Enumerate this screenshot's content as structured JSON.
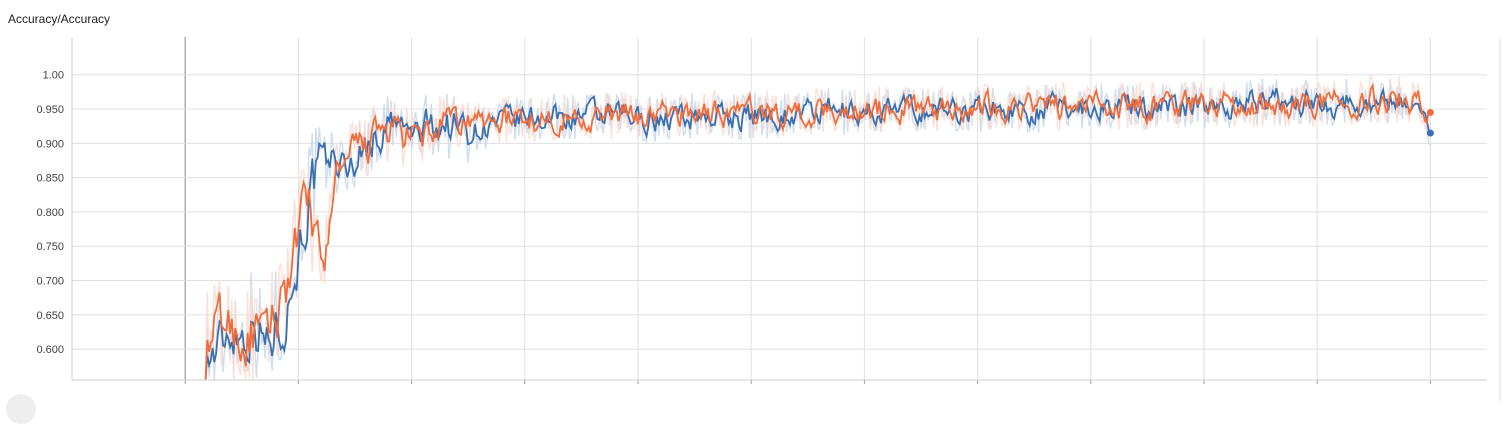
{
  "card": {
    "title": "Accuracy/Accuracy"
  },
  "chart_data": {
    "type": "line",
    "title": "Accuracy/Accuracy",
    "xlabel": "",
    "ylabel": "",
    "ylim": [
      0.555,
      1.055
    ],
    "xlim": [
      -1.0,
      11.5
    ],
    "x_gridlines": [
      0,
      1,
      2,
      3,
      4,
      5,
      6,
      7,
      8,
      9,
      10,
      11
    ],
    "y_ticks": [
      0.6,
      0.65,
      0.7,
      0.75,
      0.8,
      0.85,
      0.9,
      0.95,
      1.0
    ],
    "y_tick_labels": [
      "0.600",
      "0.650",
      "0.700",
      "0.750",
      "0.800",
      "0.850",
      "0.900",
      "0.950",
      "1.00"
    ],
    "grid": true,
    "smoothed": true,
    "series": [
      {
        "color": "#3a6fb0",
        "raw_color": "#c6d8ec",
        "points": [
          [
            0.18,
            0.59
          ],
          [
            0.3,
            0.6
          ],
          [
            0.4,
            0.64
          ],
          [
            0.5,
            0.62
          ],
          [
            0.6,
            0.65
          ],
          [
            0.7,
            0.6
          ],
          [
            0.8,
            0.64
          ],
          [
            0.9,
            0.67
          ],
          [
            1.0,
            0.76
          ],
          [
            1.05,
            0.8
          ],
          [
            1.1,
            0.84
          ],
          [
            1.2,
            0.86
          ],
          [
            1.3,
            0.88
          ],
          [
            1.4,
            0.86
          ],
          [
            1.5,
            0.88
          ],
          [
            1.6,
            0.9
          ],
          [
            1.7,
            0.91
          ],
          [
            1.8,
            0.93
          ],
          [
            1.9,
            0.92
          ],
          [
            2.0,
            0.91
          ],
          [
            2.2,
            0.93
          ],
          [
            2.5,
            0.92
          ],
          [
            2.8,
            0.93
          ],
          [
            3.0,
            0.935
          ],
          [
            3.5,
            0.94
          ],
          [
            4.0,
            0.935
          ],
          [
            4.5,
            0.94
          ],
          [
            5.0,
            0.94
          ],
          [
            5.5,
            0.945
          ],
          [
            6.0,
            0.945
          ],
          [
            6.5,
            0.95
          ],
          [
            7.0,
            0.95
          ],
          [
            7.5,
            0.95
          ],
          [
            8.0,
            0.955
          ],
          [
            8.5,
            0.955
          ],
          [
            9.0,
            0.955
          ],
          [
            9.5,
            0.96
          ],
          [
            10.0,
            0.96
          ],
          [
            10.5,
            0.96
          ],
          [
            10.8,
            0.965
          ],
          [
            11.0,
            0.915
          ]
        ]
      },
      {
        "color": "#f26b3a",
        "raw_color": "#fcd9ce",
        "points": [
          [
            0.18,
            0.6
          ],
          [
            0.3,
            0.64
          ],
          [
            0.4,
            0.63
          ],
          [
            0.5,
            0.61
          ],
          [
            0.6,
            0.62
          ],
          [
            0.7,
            0.6
          ],
          [
            0.8,
            0.66
          ],
          [
            0.9,
            0.71
          ],
          [
            1.0,
            0.77
          ],
          [
            1.1,
            0.82
          ],
          [
            1.2,
            0.68
          ],
          [
            1.3,
            0.86
          ],
          [
            1.4,
            0.86
          ],
          [
            1.5,
            0.89
          ],
          [
            1.6,
            0.9
          ],
          [
            1.7,
            0.91
          ],
          [
            1.8,
            0.92
          ],
          [
            1.9,
            0.91
          ],
          [
            2.0,
            0.9
          ],
          [
            2.2,
            0.92
          ],
          [
            2.5,
            0.93
          ],
          [
            2.8,
            0.935
          ],
          [
            3.0,
            0.935
          ],
          [
            3.5,
            0.94
          ],
          [
            4.0,
            0.94
          ],
          [
            4.5,
            0.945
          ],
          [
            5.0,
            0.945
          ],
          [
            5.5,
            0.945
          ],
          [
            6.0,
            0.95
          ],
          [
            6.5,
            0.95
          ],
          [
            7.0,
            0.955
          ],
          [
            7.5,
            0.955
          ],
          [
            8.0,
            0.955
          ],
          [
            8.5,
            0.955
          ],
          [
            9.0,
            0.96
          ],
          [
            9.5,
            0.955
          ],
          [
            10.0,
            0.96
          ],
          [
            10.5,
            0.965
          ],
          [
            10.8,
            0.965
          ],
          [
            11.0,
            0.945
          ]
        ]
      }
    ]
  }
}
